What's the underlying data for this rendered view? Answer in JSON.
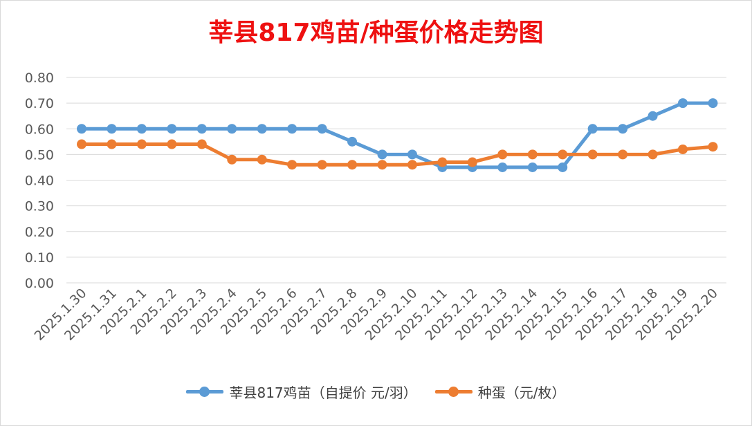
{
  "chart_data": {
    "type": "line",
    "title": "莘县817鸡苗/种蛋价格走势图",
    "categories": [
      "2025.1.30",
      "2025.1.31",
      "2025.2.1",
      "2025.2.2",
      "2025.2.3",
      "2025.2.4",
      "2025.2.5",
      "2025.2.6",
      "2025.2.7",
      "2025.2.8",
      "2025.2.9",
      "2025.2.10",
      "2025.2.11",
      "2025.2.12",
      "2025.2.13",
      "2025.2.14",
      "2025.2.15",
      "2025.2.16",
      "2025.2.17",
      "2025.2.18",
      "2025.2.19",
      "2025.2.20"
    ],
    "y_ticks": [
      "0.00",
      "0.10",
      "0.20",
      "0.30",
      "0.40",
      "0.50",
      "0.60",
      "0.70",
      "0.80"
    ],
    "ylim": [
      0,
      0.8
    ],
    "grid": true,
    "legend_position": "bottom",
    "series": [
      {
        "name": "莘县817鸡苗（自提价 元/羽）",
        "color": "#5b9bd5",
        "values": [
          0.6,
          0.6,
          0.6,
          0.6,
          0.6,
          0.6,
          0.6,
          0.6,
          0.6,
          0.55,
          0.5,
          0.5,
          0.45,
          0.45,
          0.45,
          0.45,
          0.45,
          0.6,
          0.6,
          0.65,
          0.7,
          0.7
        ]
      },
      {
        "name": "种蛋（元/枚）",
        "color": "#ed7d31",
        "values": [
          0.54,
          0.54,
          0.54,
          0.54,
          0.54,
          0.48,
          0.48,
          0.46,
          0.46,
          0.46,
          0.46,
          0.46,
          0.47,
          0.47,
          0.5,
          0.5,
          0.5,
          0.5,
          0.5,
          0.5,
          0.52,
          0.53
        ]
      }
    ]
  }
}
